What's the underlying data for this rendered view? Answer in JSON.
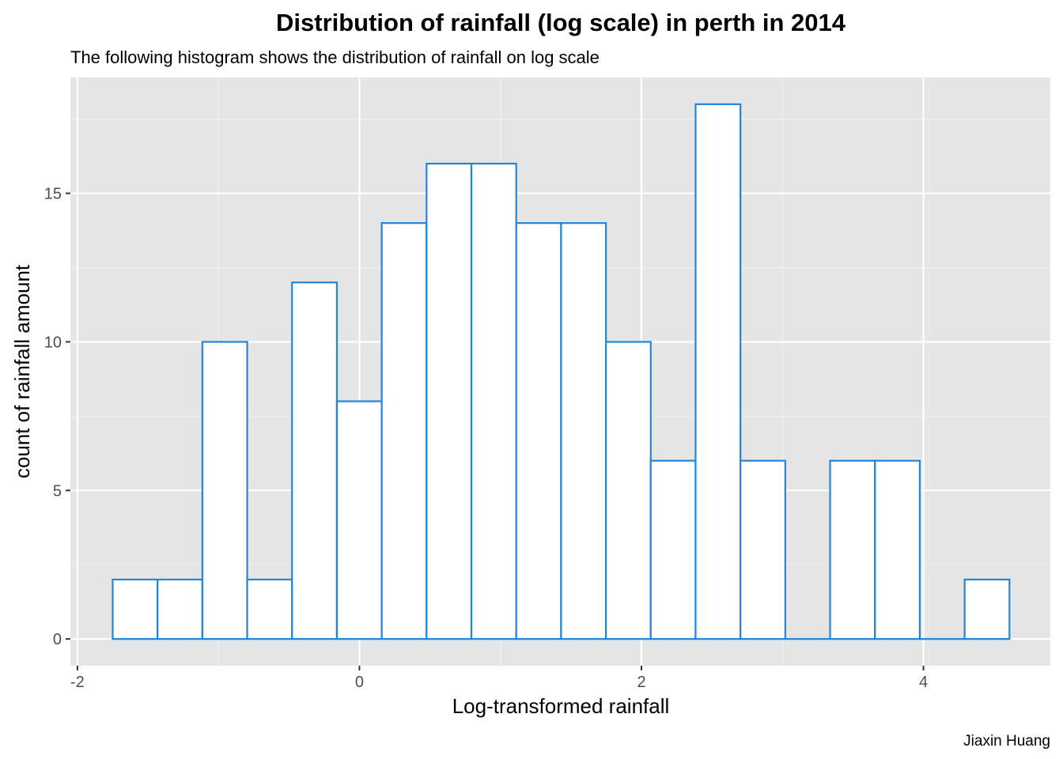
{
  "chart_data": {
    "type": "bar",
    "title": "Distribution of rainfall (log scale) in perth in 2014",
    "subtitle": "The following histogram shows the distribution of rainfall on log scale",
    "xlabel": "Log-transformed rainfall",
    "ylabel": "count of rainfall amount",
    "caption": "Jiaxin Huang",
    "xlim": [
      -2.05,
      4.9
    ],
    "ylim": [
      -0.9,
      18.9
    ],
    "x_ticks": [
      -2,
      0,
      2,
      4
    ],
    "x_tick_labels": [
      "-2",
      "0",
      "2",
      "4"
    ],
    "y_ticks": [
      0,
      5,
      10,
      15
    ],
    "y_tick_labels": [
      "0",
      "5",
      "10",
      "15"
    ],
    "grid": true,
    "legend": "none",
    "bin_width": 0.318,
    "bins": [
      {
        "x0": -1.75,
        "x1": -1.432,
        "count": 2
      },
      {
        "x0": -1.432,
        "x1": -1.114,
        "count": 2
      },
      {
        "x0": -1.114,
        "x1": -0.796,
        "count": 10
      },
      {
        "x0": -0.796,
        "x1": -0.478,
        "count": 2
      },
      {
        "x0": -0.478,
        "x1": -0.16,
        "count": 12
      },
      {
        "x0": -0.16,
        "x1": 0.158,
        "count": 8
      },
      {
        "x0": 0.158,
        "x1": 0.476,
        "count": 14
      },
      {
        "x0": 0.476,
        "x1": 0.794,
        "count": 16
      },
      {
        "x0": 0.794,
        "x1": 1.112,
        "count": 16
      },
      {
        "x0": 1.112,
        "x1": 1.43,
        "count": 14
      },
      {
        "x0": 1.43,
        "x1": 1.748,
        "count": 14
      },
      {
        "x0": 1.748,
        "x1": 2.066,
        "count": 10
      },
      {
        "x0": 2.066,
        "x1": 2.384,
        "count": 6
      },
      {
        "x0": 2.384,
        "x1": 2.702,
        "count": 18
      },
      {
        "x0": 2.702,
        "x1": 3.02,
        "count": 6
      },
      {
        "x0": 3.02,
        "x1": 3.338,
        "count": 0
      },
      {
        "x0": 3.338,
        "x1": 3.656,
        "count": 6
      },
      {
        "x0": 3.656,
        "x1": 3.974,
        "count": 6
      },
      {
        "x0": 3.974,
        "x1": 4.292,
        "count": 0
      },
      {
        "x0": 4.292,
        "x1": 4.61,
        "count": 2
      }
    ],
    "colors": {
      "panel_background": "#e5e5e5",
      "grid_major": "#ffffff",
      "grid_minor": "#f2f2f2",
      "bar_fill": "#ffffff",
      "bar_outline": "#2185d9",
      "tick_text": "#4d4d4d",
      "tick_mark": "#333333"
    }
  }
}
